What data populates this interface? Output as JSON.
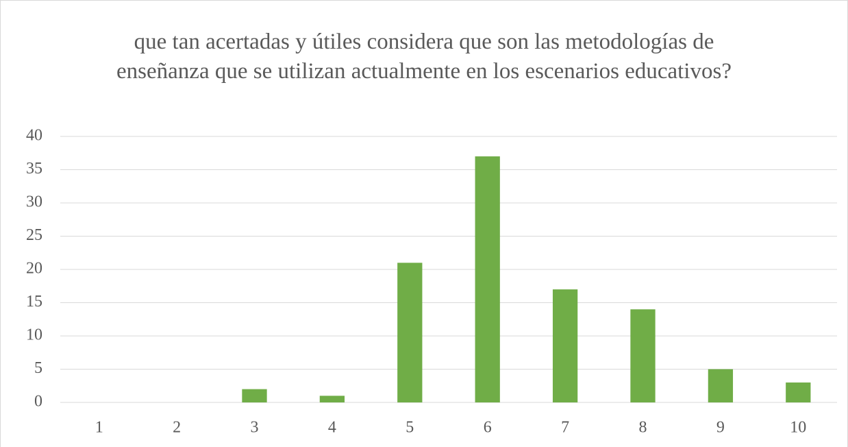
{
  "chart_data": {
    "type": "bar",
    "title": "que tan acertadas y útiles considera que son las metodologías de enseñanza que se utilizan actualmente en los escenarios educativos?",
    "categories": [
      "1",
      "2",
      "3",
      "4",
      "5",
      "6",
      "7",
      "8",
      "9",
      "10"
    ],
    "values": [
      0,
      0,
      2,
      1,
      21,
      37,
      17,
      14,
      5,
      3
    ],
    "color": "#70ad47",
    "ylim": [
      0,
      40
    ],
    "yticks": [
      0,
      5,
      10,
      15,
      20,
      25,
      30,
      35,
      40
    ],
    "grid": true
  }
}
